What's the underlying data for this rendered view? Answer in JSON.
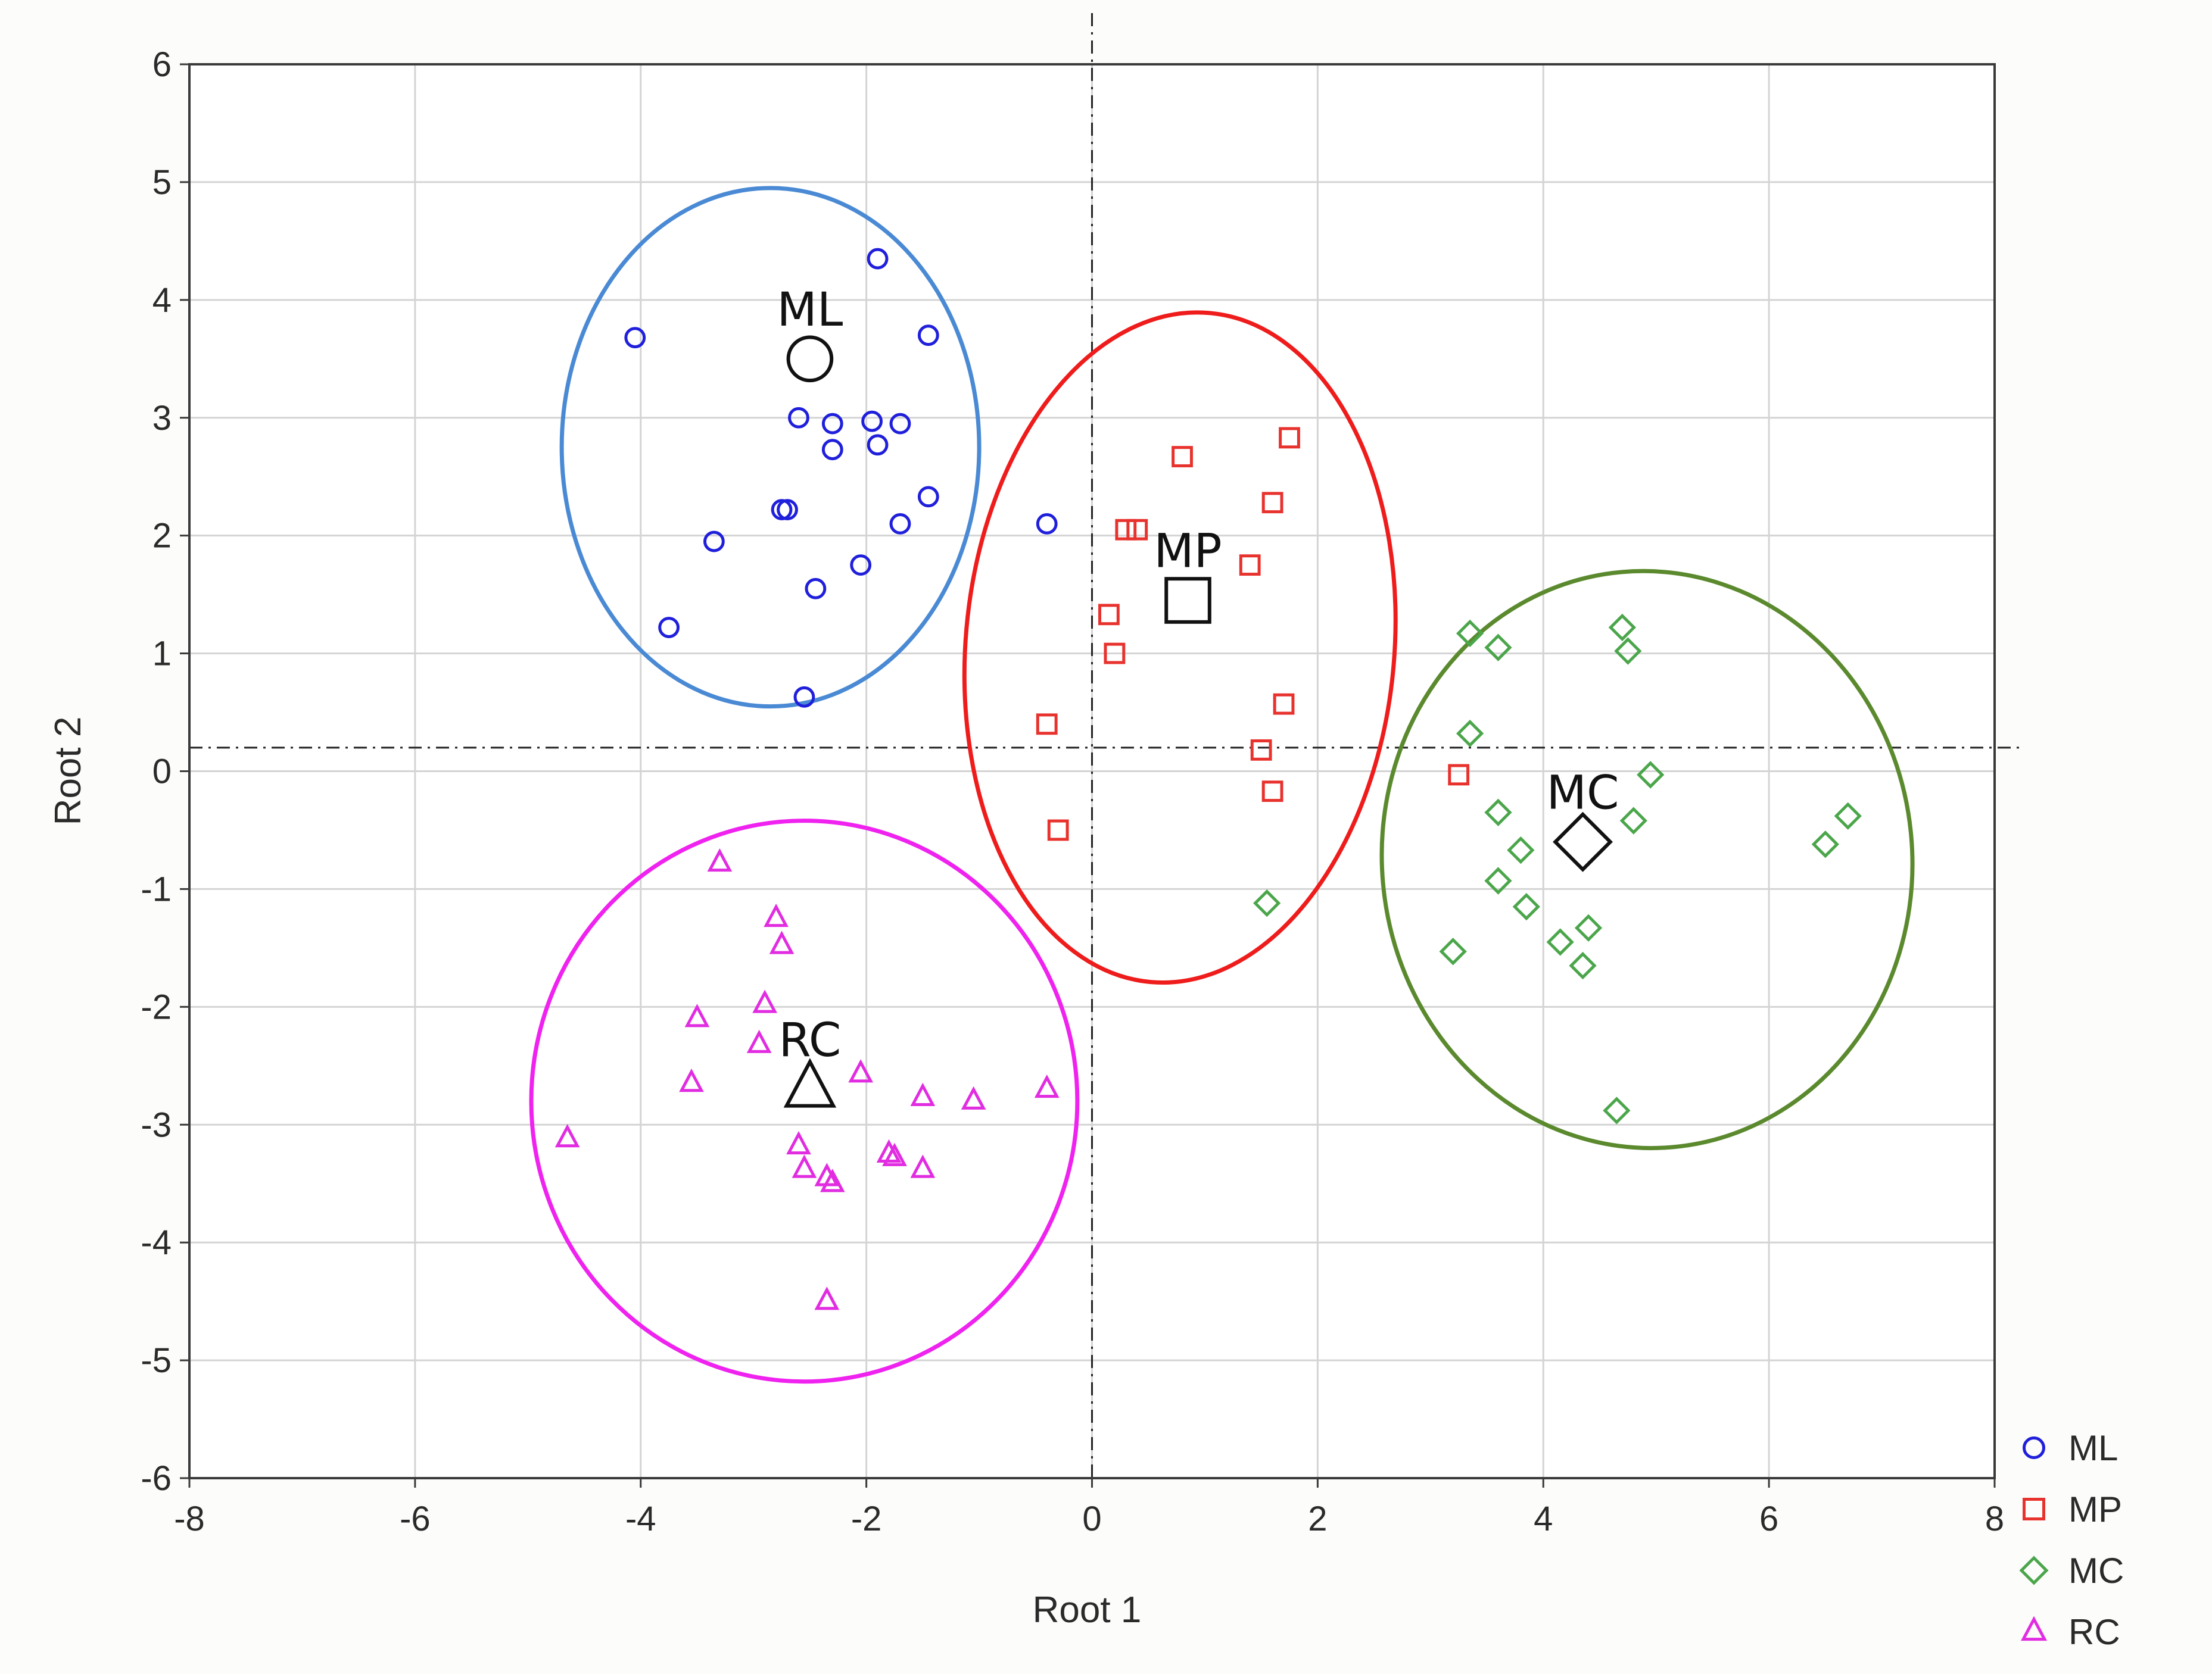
{
  "chart_data": {
    "type": "scatter",
    "title": "",
    "xlabel": "Root 1",
    "ylabel": "Root 2",
    "xlim": [
      -8,
      8
    ],
    "ylim": [
      -6,
      6
    ],
    "xticks": [
      "-8",
      "-6",
      "-4",
      "-2",
      "0",
      "2",
      "4",
      "6",
      "8"
    ],
    "yticks": [
      "6",
      "5",
      "4",
      "3",
      "2",
      "1",
      "0",
      "-1",
      "-2",
      "-3",
      "-4",
      "-5",
      "-6"
    ],
    "grid": true,
    "reference_lines": {
      "x": 0,
      "y": 0.2
    },
    "legend_position": "bottom-right",
    "series": [
      {
        "name": "ML",
        "marker": "circle",
        "color": "#1f1fdc",
        "ellipse_color": "#4a8ad4",
        "centroid": {
          "label": "ML",
          "x": -2.5,
          "y": 3.5
        },
        "ellipse": {
          "cx": -2.85,
          "cy": 2.75,
          "rx": 1.85,
          "ry": 2.2,
          "angle": 0
        },
        "points": [
          [
            -1.9,
            4.35
          ],
          [
            -4.05,
            3.68
          ],
          [
            -1.45,
            3.7
          ],
          [
            -2.6,
            3.0
          ],
          [
            -2.3,
            2.95
          ],
          [
            -1.95,
            2.97
          ],
          [
            -1.7,
            2.95
          ],
          [
            -2.3,
            2.73
          ],
          [
            -1.9,
            2.77
          ],
          [
            -2.75,
            2.22
          ],
          [
            -2.7,
            2.22
          ],
          [
            -1.45,
            2.33
          ],
          [
            -1.7,
            2.1
          ],
          [
            -3.35,
            1.95
          ],
          [
            -2.05,
            1.75
          ],
          [
            -2.45,
            1.55
          ],
          [
            -3.75,
            1.22
          ],
          [
            -2.55,
            0.63
          ],
          [
            -0.4,
            2.1
          ]
        ]
      },
      {
        "name": "MP",
        "marker": "square",
        "color": "#e8322d",
        "ellipse_color": "#ef1c1c",
        "centroid": {
          "label": "MP",
          "x": 0.85,
          "y": 1.45
        },
        "ellipse": {
          "cx": 0.78,
          "cy": 1.05,
          "rx": 1.9,
          "ry": 2.85,
          "angle": 5
        },
        "points": [
          [
            1.75,
            2.83
          ],
          [
            0.8,
            2.67
          ],
          [
            1.6,
            2.28
          ],
          [
            0.3,
            2.05
          ],
          [
            0.4,
            2.05
          ],
          [
            1.4,
            1.75
          ],
          [
            0.15,
            1.33
          ],
          [
            0.2,
            1.0
          ],
          [
            1.7,
            0.57
          ],
          [
            -0.4,
            0.4
          ],
          [
            1.5,
            0.18
          ],
          [
            1.6,
            -0.17
          ],
          [
            -0.3,
            -0.5
          ],
          [
            3.25,
            -0.03
          ]
        ]
      },
      {
        "name": "MC",
        "marker": "diamond",
        "color": "#4ba64b",
        "ellipse_color": "#5b8a2e",
        "centroid": {
          "label": "MC",
          "x": 4.35,
          "y": -0.6
        },
        "ellipse": {
          "cx": 4.92,
          "cy": -0.75,
          "rx": 2.35,
          "ry": 2.45,
          "angle": -5
        },
        "points": [
          [
            4.7,
            1.22
          ],
          [
            3.35,
            1.17
          ],
          [
            3.6,
            1.05
          ],
          [
            4.75,
            1.02
          ],
          [
            3.35,
            0.32
          ],
          [
            4.95,
            -0.03
          ],
          [
            3.6,
            -0.35
          ],
          [
            4.8,
            -0.42
          ],
          [
            6.7,
            -0.38
          ],
          [
            6.5,
            -0.62
          ],
          [
            3.8,
            -0.67
          ],
          [
            3.6,
            -0.93
          ],
          [
            3.85,
            -1.15
          ],
          [
            4.4,
            -1.33
          ],
          [
            4.15,
            -1.45
          ],
          [
            3.2,
            -1.53
          ],
          [
            4.35,
            -1.65
          ],
          [
            4.65,
            -2.88
          ],
          [
            1.55,
            -1.12
          ]
        ]
      },
      {
        "name": "RC",
        "marker": "triangle",
        "color": "#e12ce1",
        "ellipse_color": "#ef22ef",
        "centroid": {
          "label": "RC",
          "x": -2.5,
          "y": -2.7
        },
        "ellipse": {
          "cx": -2.55,
          "cy": -2.8,
          "rx": 2.42,
          "ry": 2.38,
          "angle": 0
        },
        "points": [
          [
            -3.3,
            -0.78
          ],
          [
            -2.8,
            -1.25
          ],
          [
            -2.75,
            -1.48
          ],
          [
            -2.9,
            -1.98
          ],
          [
            -3.5,
            -2.1
          ],
          [
            -2.95,
            -2.32
          ],
          [
            -2.05,
            -2.57
          ],
          [
            -3.55,
            -2.65
          ],
          [
            -1.5,
            -2.77
          ],
          [
            -1.05,
            -2.8
          ],
          [
            -0.4,
            -2.7
          ],
          [
            -4.65,
            -3.12
          ],
          [
            -2.6,
            -3.18
          ],
          [
            -1.8,
            -3.25
          ],
          [
            -1.75,
            -3.28
          ],
          [
            -2.55,
            -3.38
          ],
          [
            -1.5,
            -3.38
          ],
          [
            -2.35,
            -3.45
          ],
          [
            -2.3,
            -3.5
          ],
          [
            -2.35,
            -4.5
          ]
        ]
      }
    ]
  }
}
